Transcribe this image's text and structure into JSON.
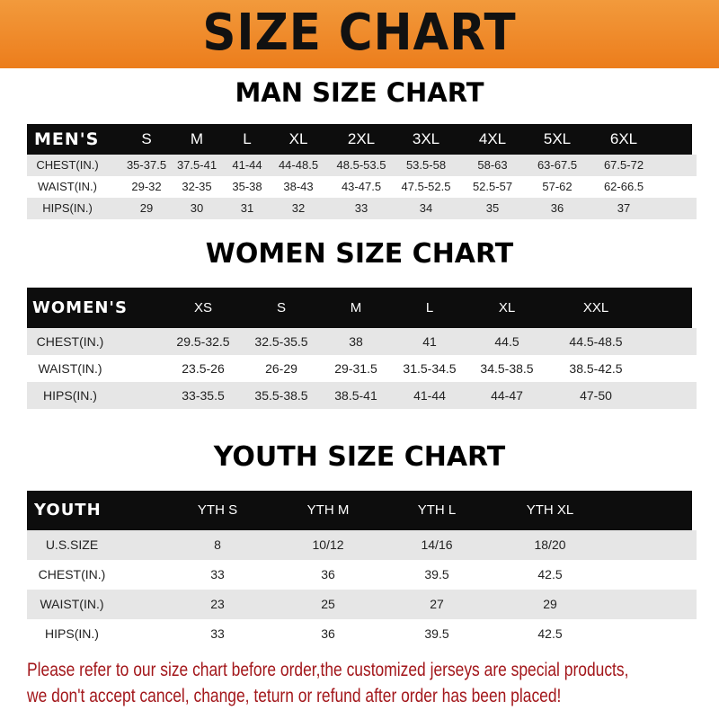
{
  "title": "SIZE CHART",
  "colors": {
    "banner": "#ef8a2a",
    "header_row": "#0d0d0d",
    "stripe": "#e6e6e6",
    "notice": "#a3171b"
  },
  "men": {
    "title": "MAN SIZE CHART",
    "header": [
      "MEN'S",
      "S",
      "M",
      "L",
      "XL",
      "2XL",
      "3XL",
      "4XL",
      "5XL",
      "6XL"
    ],
    "rows": [
      [
        "CHEST(IN.)",
        "35-37.5",
        "37.5-41",
        "41-44",
        "44-48.5",
        "48.5-53.5",
        "53.5-58",
        "58-63",
        "63-67.5",
        "67.5-72"
      ],
      [
        "WAIST(IN.)",
        "29-32",
        "32-35",
        "35-38",
        "38-43",
        "43-47.5",
        "47.5-52.5",
        "52.5-57",
        "57-62",
        "62-66.5"
      ],
      [
        "HIPS(IN.)",
        "29",
        "30",
        "31",
        "32",
        "33",
        "34",
        "35",
        "36",
        "37"
      ]
    ]
  },
  "women": {
    "title": "WOMEN SIZE CHART",
    "header": [
      "WOMEN'S",
      "XS",
      "S",
      "M",
      "L",
      "XL",
      "XXL"
    ],
    "rows": [
      [
        "CHEST(IN.)",
        "29.5-32.5",
        "32.5-35.5",
        "38",
        "41",
        "44.5",
        "44.5-48.5"
      ],
      [
        "WAIST(IN.)",
        "23.5-26",
        "26-29",
        "29-31.5",
        "31.5-34.5",
        "34.5-38.5",
        "38.5-42.5"
      ],
      [
        "HIPS(IN.)",
        "33-35.5",
        "35.5-38.5",
        "38.5-41",
        "41-44",
        "44-47",
        "47-50"
      ]
    ]
  },
  "youth": {
    "title": "YOUTH SIZE CHART",
    "header": [
      "YOUTH",
      "YTH S",
      "YTH M",
      "YTH L",
      "YTH XL"
    ],
    "rows": [
      [
        "U.S.SIZE",
        "8",
        "10/12",
        "14/16",
        "18/20"
      ],
      [
        "CHEST(IN.)",
        "33",
        "36",
        "39.5",
        "42.5"
      ],
      [
        "WAIST(IN.)",
        "23",
        "25",
        "27",
        "29"
      ],
      [
        "HIPS(IN.)",
        "33",
        "36",
        "39.5",
        "42.5"
      ]
    ]
  },
  "notice": {
    "line1": "Please refer to our size chart before order,the customized jerseys are special products,",
    "line2": "we don't accept cancel, change, teturn or refund after order has been placed!"
  }
}
